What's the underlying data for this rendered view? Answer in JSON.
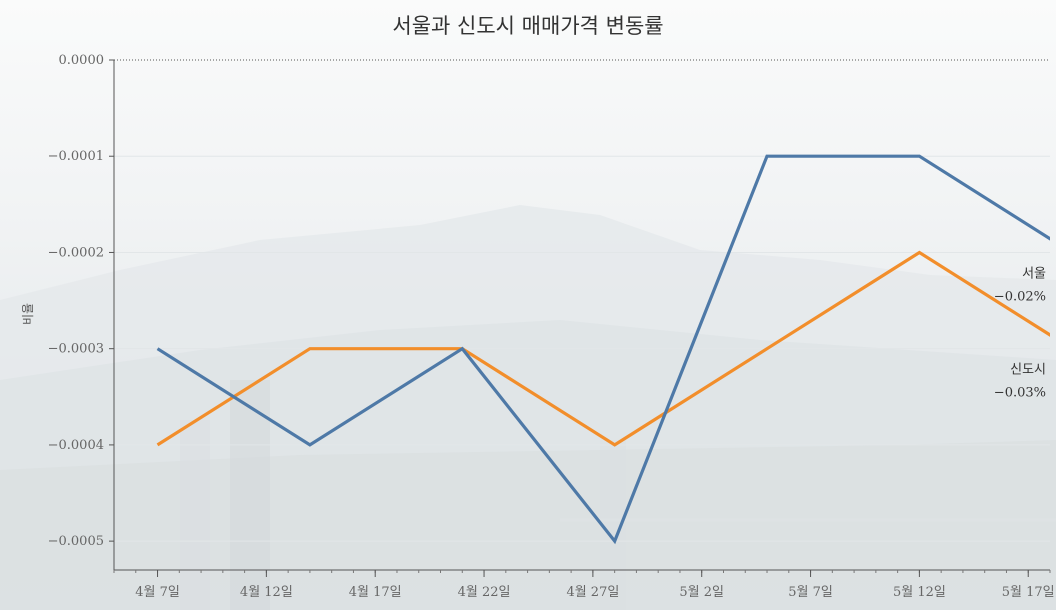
{
  "chart_data": {
    "type": "line",
    "title": "서울과 신도시 매매가격 변동률",
    "ylabel": "비율",
    "xlabel": "",
    "ylim": [
      -0.00053,
      0.0
    ],
    "yticks": [
      {
        "value": 0.0,
        "label": "0.0000"
      },
      {
        "value": -0.0001,
        "label": "−0.0001"
      },
      {
        "value": -0.0002,
        "label": "−0.0002"
      },
      {
        "value": -0.0003,
        "label": "−0.0003"
      },
      {
        "value": -0.0004,
        "label": "−0.0004"
      },
      {
        "value": -0.0005,
        "label": "−0.0005"
      }
    ],
    "xlim": [
      "2018-04-05",
      "2018-05-18"
    ],
    "xticks": [
      {
        "date": "2018-04-07",
        "label": "4월 7일"
      },
      {
        "date": "2018-04-12",
        "label": "4월 12일"
      },
      {
        "date": "2018-04-17",
        "label": "4월 17일"
      },
      {
        "date": "2018-04-22",
        "label": "4월 22일"
      },
      {
        "date": "2018-04-27",
        "label": "4월 27일"
      },
      {
        "date": "2018-05-02",
        "label": "5월 2일"
      },
      {
        "date": "2018-05-07",
        "label": "5월 7일"
      },
      {
        "date": "2018-05-12",
        "label": "5월 12일"
      },
      {
        "date": "2018-05-17",
        "label": "5월 17일"
      }
    ],
    "x": [
      "2018-04-07",
      "2018-04-14",
      "2018-04-21",
      "2018-04-28",
      "2018-05-05",
      "2018-05-12",
      "2018-05-19"
    ],
    "series": [
      {
        "name": "서울",
        "color": "#4e79a7",
        "values": [
          -0.0003,
          -0.0004,
          -0.0003,
          -0.0005,
          -0.0001,
          -0.0001,
          -0.0002
        ],
        "end_label": "−0.02%"
      },
      {
        "name": "신도시",
        "color": "#f28e2b",
        "values": [
          -0.0004,
          -0.0003,
          -0.0003,
          -0.0004,
          -0.0003,
          -0.0002,
          -0.0003
        ],
        "end_label": "−0.03%"
      }
    ],
    "grid": true,
    "legend": "direct labels at line ends"
  }
}
